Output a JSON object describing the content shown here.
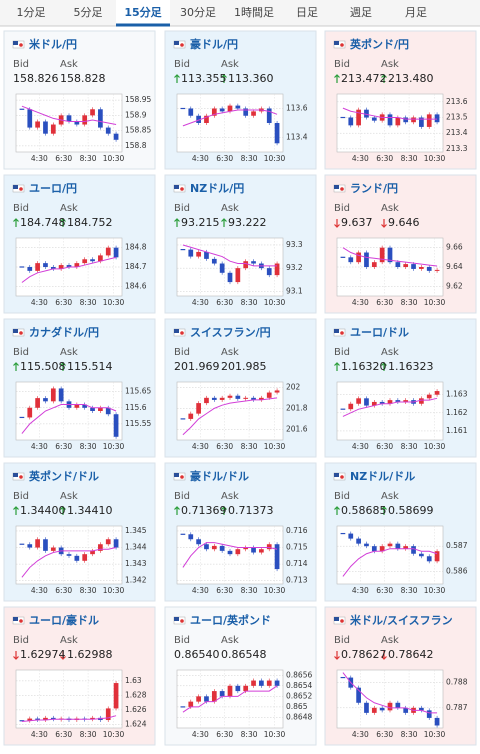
{
  "tabs": {
    "items": [
      "1分足",
      "5分足",
      "15分足",
      "30分足",
      "1時間足",
      "日足",
      "週足",
      "月足"
    ],
    "active": 2
  },
  "cards": [
    {
      "pair": "米ドル/円",
      "bg": "#f7f9fb",
      "bid_label": "Bid",
      "bid": "158.826",
      "ask_label": "Ask",
      "ask": "158.828",
      "chart": {
        "ylim": [
          158.78,
          158.97
        ],
        "yticks": [
          158.8,
          158.85,
          158.9,
          158.95
        ],
        "xticks": [
          "4:30",
          "6:30",
          "8:30",
          "10:30"
        ],
        "close": [
          158.92,
          158.86,
          158.88,
          158.84,
          158.87,
          158.9,
          158.88,
          158.87,
          158.9,
          158.92,
          158.86,
          158.84,
          158.82
        ],
        "ma": [
          158.93,
          158.92,
          158.91,
          158.9,
          158.89,
          158.885,
          158.88,
          158.88,
          158.88,
          158.885,
          158.88,
          158.875,
          158.87
        ]
      }
    },
    {
      "pair": "豪ドル/円",
      "bg": "#e8f3fb",
      "trend": "up",
      "bid_label": "Bid",
      "bid": "113.355",
      "ask_label": "Ask",
      "ask": "113.360",
      "chart": {
        "ylim": [
          113.3,
          113.7
        ],
        "yticks": [
          113.4,
          113.6
        ],
        "xticks": [
          "4:30",
          "6:30",
          "8:30",
          "10:30"
        ],
        "close": [
          113.6,
          113.55,
          113.5,
          113.55,
          113.6,
          113.58,
          113.62,
          113.6,
          113.55,
          113.58,
          113.6,
          113.5,
          113.36
        ],
        "ma": [
          113.48,
          113.5,
          113.52,
          113.54,
          113.56,
          113.57,
          113.58,
          113.59,
          113.59,
          113.59,
          113.59,
          113.58,
          113.56
        ]
      }
    },
    {
      "pair": "英ポンド/円",
      "bg": "#fcecec",
      "trend": "up",
      "bid_label": "Bid",
      "bid": "213.472",
      "ask_label": "Ask",
      "ask": "213.480",
      "chart": {
        "ylim": [
          213.28,
          213.65
        ],
        "yticks": [
          213.3,
          213.4,
          213.5,
          213.6
        ],
        "xticks": [
          "4:30",
          "6:30",
          "8:30",
          "10:30"
        ],
        "close": [
          213.5,
          213.45,
          213.55,
          213.5,
          213.48,
          213.52,
          213.45,
          213.5,
          213.47,
          213.5,
          213.44,
          213.52,
          213.47
        ],
        "ma": [
          213.56,
          213.54,
          213.53,
          213.52,
          213.51,
          213.5,
          213.5,
          213.5,
          213.49,
          213.49,
          213.49,
          213.49,
          213.49
        ]
      }
    },
    {
      "pair": "ユーロ/円",
      "bg": "#e8f3fb",
      "trend": "up",
      "bid_label": "Bid",
      "bid": "184.748",
      "ask_label": "Ask",
      "ask": "184.752",
      "chart": {
        "ylim": [
          184.55,
          184.85
        ],
        "yticks": [
          184.6,
          184.7,
          184.8
        ],
        "xticks": [
          "4:30",
          "6:30",
          "8:30",
          "10:30"
        ],
        "close": [
          184.7,
          184.68,
          184.72,
          184.7,
          184.69,
          184.71,
          184.7,
          184.72,
          184.74,
          184.73,
          184.76,
          184.8,
          184.75
        ],
        "ma": [
          184.62,
          184.65,
          184.67,
          184.68,
          184.69,
          184.69,
          184.7,
          184.7,
          184.71,
          184.72,
          184.73,
          184.74,
          184.75
        ]
      }
    },
    {
      "pair": "NZドル/円",
      "bg": "#e8f3fb",
      "trend": "up",
      "bid_label": "Bid",
      "bid": "93.215",
      "ask_label": "Ask",
      "ask": "93.222",
      "chart": {
        "ylim": [
          93.08,
          93.33
        ],
        "yticks": [
          93.1,
          93.2,
          93.3
        ],
        "xticks": [
          "4:30",
          "6:30",
          "8:30",
          "10:30"
        ],
        "close": [
          93.28,
          93.25,
          93.27,
          93.24,
          93.22,
          93.18,
          93.14,
          93.2,
          93.23,
          93.22,
          93.2,
          93.17,
          93.22
        ],
        "ma": [
          93.3,
          93.29,
          93.28,
          93.27,
          93.26,
          93.25,
          93.23,
          93.22,
          93.22,
          93.21,
          93.21,
          93.21,
          93.21
        ]
      }
    },
    {
      "pair": "ランド/円",
      "bg": "#fcecec",
      "trend": "down",
      "bid_label": "Bid",
      "bid": "9.637",
      "ask_label": "Ask",
      "ask": "9.646",
      "chart": {
        "ylim": [
          9.61,
          9.67
        ],
        "yticks": [
          9.62,
          9.64,
          9.66
        ],
        "xticks": [
          "4:30",
          "6:30",
          "8:30",
          "10:30"
        ],
        "close": [
          9.65,
          9.645,
          9.655,
          9.64,
          9.645,
          9.66,
          9.645,
          9.64,
          9.643,
          9.638,
          9.64,
          9.636,
          9.637
        ],
        "ma": [
          9.66,
          9.655,
          9.652,
          9.65,
          9.649,
          9.648,
          9.647,
          9.646,
          9.645,
          9.644,
          9.643,
          9.642,
          9.641
        ]
      }
    },
    {
      "pair": "カナダドル/円",
      "bg": "#e8f3fb",
      "trend": "up",
      "bid_label": "Bid",
      "bid": "115.508",
      "ask_label": "Ask",
      "ask": "115.514",
      "chart": {
        "ylim": [
          115.5,
          115.68
        ],
        "yticks": [
          115.55,
          115.6,
          115.65
        ],
        "xticks": [
          "4:30",
          "6:30",
          "8:30",
          "10:30"
        ],
        "close": [
          115.57,
          115.6,
          115.63,
          115.62,
          115.66,
          115.62,
          115.6,
          115.61,
          115.6,
          115.59,
          115.6,
          115.58,
          115.51
        ],
        "ma": [
          115.52,
          115.55,
          115.57,
          115.59,
          115.6,
          115.61,
          115.61,
          115.61,
          115.61,
          115.6,
          115.6,
          115.6,
          115.59
        ]
      }
    },
    {
      "pair": "スイスフラン/円",
      "bg": "#e8f3fb",
      "bid_label": "Bid",
      "bid": "201.969",
      "ask_label": "Ask",
      "ask": "201.985",
      "chart": {
        "ylim": [
          201.5,
          202.05
        ],
        "yticks": [
          201.6,
          201.8,
          202
        ],
        "xticks": [
          "4:30",
          "6:30",
          "8:30",
          "10:30"
        ],
        "close": [
          201.7,
          201.75,
          201.85,
          201.9,
          201.88,
          201.9,
          201.92,
          201.89,
          201.9,
          201.88,
          201.9,
          201.95,
          201.97
        ],
        "ma": [
          201.55,
          201.62,
          201.7,
          201.75,
          201.8,
          201.83,
          201.85,
          201.86,
          201.87,
          201.88,
          201.88,
          201.89,
          201.9
        ]
      }
    },
    {
      "pair": "ユーロ/ドル",
      "bg": "#e8f3fb",
      "trend": "up",
      "bid_label": "Bid",
      "bid": "1.16320",
      "ask_label": "Ask",
      "ask": "1.16323",
      "chart": {
        "ylim": [
          1.1605,
          1.1637
        ],
        "yticks": [
          1.161,
          1.162,
          1.163
        ],
        "xticks": [
          "4:30",
          "6:30",
          "8:30",
          "10:30"
        ],
        "close": [
          1.1622,
          1.1625,
          1.1628,
          1.1624,
          1.1626,
          1.1625,
          1.1627,
          1.1626,
          1.1627,
          1.1625,
          1.1628,
          1.163,
          1.1632
        ],
        "ma": [
          1.1618,
          1.162,
          1.1622,
          1.1623,
          1.1624,
          1.1625,
          1.1625,
          1.1626,
          1.1626,
          1.1626,
          1.1627,
          1.1627,
          1.1628
        ]
      }
    },
    {
      "pair": "英ポンド/ドル",
      "bg": "#e8f3fb",
      "trend": "up",
      "bid_label": "Bid",
      "bid": "1.34400",
      "ask_label": "Ask",
      "ask": "1.34410",
      "chart": {
        "ylim": [
          1.3418,
          1.3453
        ],
        "yticks": [
          1.342,
          1.343,
          1.344,
          1.345
        ],
        "xticks": [
          "4:30",
          "6:30",
          "8:30",
          "10:30"
        ],
        "close": [
          1.3442,
          1.344,
          1.3445,
          1.3438,
          1.344,
          1.3436,
          1.3435,
          1.3432,
          1.3436,
          1.3438,
          1.3442,
          1.3445,
          1.344
        ],
        "ma": [
          1.3422,
          1.3428,
          1.3432,
          1.3435,
          1.3437,
          1.3438,
          1.3438,
          1.3438,
          1.3438,
          1.3438,
          1.3439,
          1.3439,
          1.344
        ]
      }
    },
    {
      "pair": "豪ドル/ドル",
      "bg": "#e8f3fb",
      "trend": "up",
      "bid_label": "Bid",
      "bid": "0.71369",
      "ask_label": "Ask",
      "ask": "0.71373",
      "chart": {
        "ylim": [
          0.7128,
          0.7163
        ],
        "yticks": [
          0.713,
          0.714,
          0.715,
          0.716
        ],
        "xticks": [
          "4:30",
          "6:30",
          "8:30",
          "10:30"
        ],
        "close": [
          0.7158,
          0.7155,
          0.7152,
          0.7149,
          0.7151,
          0.7148,
          0.7146,
          0.7149,
          0.715,
          0.7147,
          0.7149,
          0.7152,
          0.7137
        ],
        "ma": [
          0.7138,
          0.7145,
          0.715,
          0.7153,
          0.7153,
          0.7152,
          0.7151,
          0.715,
          0.715,
          0.715,
          0.715,
          0.715,
          0.7149
        ]
      }
    },
    {
      "pair": "NZドル/ドル",
      "bg": "#e8f3fb",
      "trend": "up",
      "bid_label": "Bid",
      "bid": "0.58685",
      "ask_label": "Ask",
      "ask": "0.58699",
      "chart": {
        "ylim": [
          0.5855,
          0.5878
        ],
        "yticks": [
          0.586,
          0.587
        ],
        "xticks": [
          "4:30",
          "6:30",
          "8:30",
          "10:30"
        ],
        "close": [
          0.5875,
          0.5873,
          0.5871,
          0.587,
          0.5868,
          0.587,
          0.5871,
          0.5869,
          0.587,
          0.5867,
          0.5866,
          0.5864,
          0.5868
        ],
        "ma": [
          0.5858,
          0.5862,
          0.5865,
          0.5867,
          0.5868,
          0.5868,
          0.5869,
          0.5869,
          0.5869,
          0.5869,
          0.5868,
          0.5868,
          0.5867
        ]
      }
    },
    {
      "pair": "ユーロ/豪ドル",
      "bg": "#fcecec",
      "trend": "down",
      "bid_label": "Bid",
      "bid": "1.62974",
      "ask_label": "Ask",
      "ask": "1.62988",
      "chart": {
        "ylim": [
          1.6235,
          1.6315
        ],
        "yticks": [
          1.624,
          1.626,
          1.628,
          1.63
        ],
        "xticks": [
          "4:30",
          "6:30",
          "8:30",
          "10:30"
        ],
        "close": [
          1.6245,
          1.6248,
          1.6246,
          1.6249,
          1.6247,
          1.6248,
          1.6246,
          1.6248,
          1.6247,
          1.6249,
          1.6246,
          1.6262,
          1.6297
        ],
        "ma": [
          1.6244,
          1.6245,
          1.6246,
          1.6246,
          1.6247,
          1.6247,
          1.6247,
          1.6247,
          1.6247,
          1.6247,
          1.6248,
          1.6249,
          1.6252
        ]
      }
    },
    {
      "pair": "ユーロ/英ポンド",
      "bg": "#f7f9fb",
      "bid_label": "Bid",
      "bid": "0.86540",
      "ask_label": "Ask",
      "ask": "0.86548",
      "chart": {
        "ylim": [
          0.8646,
          0.8657
        ],
        "yticks": [
          0.8648,
          0.865,
          0.8652,
          0.8654,
          0.8656
        ],
        "xticks": [
          "4:30",
          "6:30",
          "8:30",
          "10:30"
        ],
        "close": [
          0.865,
          0.8651,
          0.8652,
          0.8651,
          0.8653,
          0.8652,
          0.8654,
          0.8653,
          0.8654,
          0.8655,
          0.8654,
          0.8655,
          0.8654
        ],
        "ma": [
          0.8649,
          0.865,
          0.865,
          0.8651,
          0.8651,
          0.8652,
          0.8652,
          0.8652,
          0.8653,
          0.8653,
          0.8653,
          0.8653,
          0.8654
        ]
      }
    },
    {
      "pair": "米ドル/スイスフラン",
      "bg": "#fcecec",
      "trend": "down",
      "bid_label": "Bid",
      "bid": "0.78627",
      "ask_label": "Ask",
      "ask": "0.78642",
      "chart": {
        "ylim": [
          0.7862,
          0.7885
        ],
        "yticks": [
          0.787,
          0.788
        ],
        "xticks": [
          "4:30",
          "6:30",
          "8:30",
          "10:30"
        ],
        "close": [
          0.7882,
          0.7878,
          0.7872,
          0.7868,
          0.787,
          0.7869,
          0.7872,
          0.787,
          0.7868,
          0.787,
          0.7869,
          0.7866,
          0.7863
        ],
        "ma": [
          0.7884,
          0.788,
          0.7877,
          0.7874,
          0.7872,
          0.7871,
          0.787,
          0.787,
          0.787,
          0.7869,
          0.7869,
          0.7868,
          0.7868
        ]
      }
    }
  ]
}
